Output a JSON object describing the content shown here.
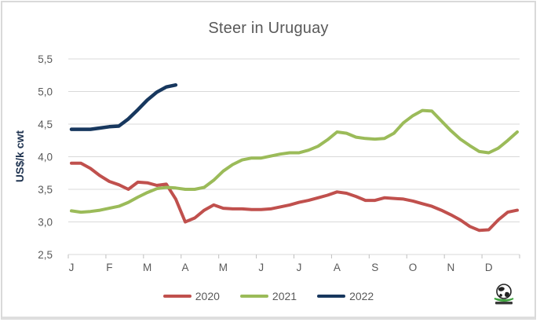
{
  "chart": {
    "title": "Steer in Uruguay",
    "y_axis_label": "US$/k cwt"
  },
  "chart_data": {
    "type": "line",
    "title": "Steer in Uruguay",
    "xlabel": "",
    "ylabel": "US$/k cwt",
    "ylim": [
      2.5,
      5.5
    ],
    "y_ticks": [
      2.5,
      3.0,
      3.5,
      4.0,
      4.5,
      5.0,
      5.5
    ],
    "y_tick_labels": [
      "2,5",
      "3,0",
      "3,5",
      "4,0",
      "4,5",
      "5,0",
      "5,5"
    ],
    "x_tick_labels": [
      "J",
      "F",
      "M",
      "A",
      "M",
      "J",
      "J",
      "A",
      "S",
      "O",
      "N",
      "D"
    ],
    "points_per_month": 4,
    "grid": true,
    "legend_position": "bottom",
    "series": [
      {
        "name": "2020",
        "color": "#C0504D",
        "values": [
          3.9,
          3.9,
          3.82,
          3.71,
          3.62,
          3.57,
          3.5,
          3.61,
          3.6,
          3.56,
          3.58,
          3.35,
          3.0,
          3.06,
          3.18,
          3.26,
          3.21,
          3.2,
          3.2,
          3.19,
          3.19,
          3.2,
          3.23,
          3.26,
          3.3,
          3.33,
          3.37,
          3.41,
          3.46,
          3.44,
          3.39,
          3.33,
          3.33,
          3.37,
          3.36,
          3.35,
          3.32,
          3.28,
          3.24,
          3.18,
          3.11,
          3.03,
          2.93,
          2.87,
          2.88,
          3.03,
          3.15,
          3.18
        ]
      },
      {
        "name": "2021",
        "color": "#9BBB59",
        "values": [
          3.17,
          3.15,
          3.16,
          3.18,
          3.21,
          3.24,
          3.3,
          3.38,
          3.45,
          3.51,
          3.53,
          3.52,
          3.5,
          3.5,
          3.53,
          3.64,
          3.78,
          3.88,
          3.95,
          3.98,
          3.98,
          4.01,
          4.04,
          4.06,
          4.06,
          4.1,
          4.16,
          4.26,
          4.38,
          4.36,
          4.3,
          4.28,
          4.27,
          4.28,
          4.36,
          4.52,
          4.63,
          4.71,
          4.7,
          4.55,
          4.4,
          4.27,
          4.17,
          4.08,
          4.06,
          4.13,
          4.25,
          4.38
        ]
      },
      {
        "name": "2022",
        "color": "#17375E",
        "values": [
          4.42,
          4.42,
          4.42,
          4.44,
          4.46,
          4.47,
          4.58,
          4.72,
          4.87,
          4.99,
          5.07,
          5.1
        ]
      }
    ]
  },
  "style": {
    "grid_color": "#D9D9D9",
    "tick_color": "#BFBFBF",
    "axis_text_color": "#595959",
    "title_color": "#595959",
    "logo_green": "#3FA13F"
  }
}
